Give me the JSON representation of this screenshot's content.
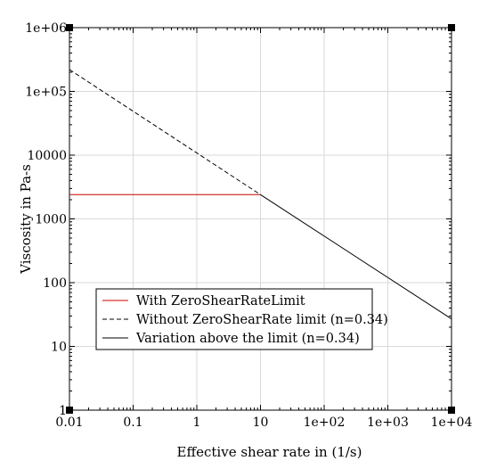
{
  "chart_data": {
    "type": "line",
    "title": "",
    "xlabel": "Effective shear rate in (1/s)",
    "ylabel": "Viscosity in Pa-s",
    "xscale": "log",
    "yscale": "log",
    "xlim": [
      0.01,
      10000
    ],
    "ylim": [
      1,
      1000000
    ],
    "grid": true,
    "legend_position": "lower-left",
    "x_ticks": [
      0.01,
      0.1,
      1,
      10,
      100,
      1000,
      10000
    ],
    "x_tick_labels": [
      "0.01",
      "0.1",
      "1",
      "10",
      "1e+02",
      "1e+03",
      "1e+04"
    ],
    "y_ticks": [
      1,
      10,
      100,
      1000,
      10000,
      100000,
      1000000
    ],
    "y_tick_labels": [
      "1",
      "10",
      "100",
      "1000",
      "10000",
      "1e+05",
      "1e+06"
    ],
    "series": [
      {
        "name": "With ZeroShearRateLimit",
        "color": "#cc0000",
        "dash": "solid",
        "x": [
          0.01,
          10
        ],
        "y": [
          2400,
          2400
        ]
      },
      {
        "name": "Without ZeroShearRate limit (n=0.34)",
        "color": "#000000",
        "dash": "dashed",
        "x": [
          0.01,
          10
        ],
        "y": [
          220000,
          2400
        ]
      },
      {
        "name": "Variation above the limit (n=0.34)",
        "color": "#000000",
        "dash": "solid",
        "x": [
          10,
          10000
        ],
        "y": [
          2400,
          27
        ]
      }
    ]
  }
}
